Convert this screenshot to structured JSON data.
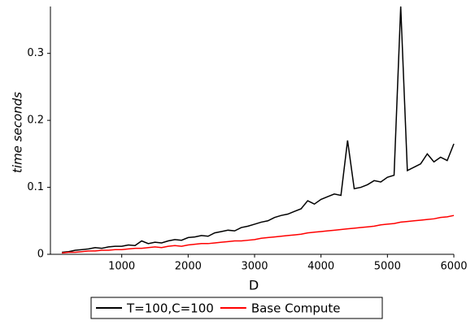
{
  "chart_data": {
    "type": "line",
    "x_label": "D",
    "y_label": "time seconds",
    "x": [
      100,
      200,
      300,
      400,
      500,
      600,
      700,
      800,
      900,
      1000,
      1100,
      1200,
      1300,
      1400,
      1500,
      1600,
      1700,
      1800,
      1900,
      2000,
      2100,
      2200,
      2300,
      2400,
      2500,
      2600,
      2700,
      2800,
      2900,
      3000,
      3100,
      3200,
      3300,
      3400,
      3500,
      3600,
      3700,
      3800,
      3900,
      4000,
      4100,
      4200,
      4300,
      4400,
      4500,
      4600,
      4700,
      4800,
      4900,
      5000,
      5100,
      5200,
      5300,
      5400,
      5500,
      5600,
      5700,
      5800,
      5900,
      6000
    ],
    "series": [
      {
        "name": "T=100,C=100",
        "color": "#000000",
        "values": [
          0.003,
          0.004,
          0.006,
          0.007,
          0.008,
          0.01,
          0.009,
          0.011,
          0.012,
          0.012,
          0.014,
          0.013,
          0.02,
          0.016,
          0.018,
          0.017,
          0.02,
          0.022,
          0.021,
          0.025,
          0.026,
          0.028,
          0.027,
          0.032,
          0.034,
          0.036,
          0.035,
          0.04,
          0.042,
          0.045,
          0.048,
          0.05,
          0.055,
          0.058,
          0.06,
          0.064,
          0.068,
          0.08,
          0.075,
          0.082,
          0.086,
          0.09,
          0.088,
          0.17,
          0.098,
          0.1,
          0.104,
          0.11,
          0.108,
          0.115,
          0.118,
          0.37,
          0.125,
          0.13,
          0.135,
          0.15,
          0.138,
          0.145,
          0.14,
          0.165
        ]
      },
      {
        "name": "Base Compute",
        "color": "#ff0000",
        "values": [
          0.002,
          0.003,
          0.003,
          0.004,
          0.005,
          0.005,
          0.006,
          0.006,
          0.007,
          0.007,
          0.008,
          0.009,
          0.009,
          0.01,
          0.011,
          0.01,
          0.012,
          0.013,
          0.012,
          0.014,
          0.015,
          0.016,
          0.016,
          0.017,
          0.018,
          0.019,
          0.02,
          0.02,
          0.021,
          0.022,
          0.024,
          0.025,
          0.026,
          0.027,
          0.028,
          0.029,
          0.03,
          0.032,
          0.033,
          0.034,
          0.035,
          0.036,
          0.037,
          0.038,
          0.039,
          0.04,
          0.041,
          0.042,
          0.044,
          0.045,
          0.046,
          0.048,
          0.049,
          0.05,
          0.051,
          0.052,
          0.053,
          0.055,
          0.056,
          0.058
        ]
      }
    ],
    "xlim": [
      0,
      6000
    ],
    "xticks": [
      1000,
      2000,
      3000,
      4000,
      5000,
      6000
    ],
    "ylim": [
      0,
      0.37
    ],
    "yticks": [
      0,
      0.1,
      0.2,
      0.3
    ],
    "legend": "bottom"
  }
}
